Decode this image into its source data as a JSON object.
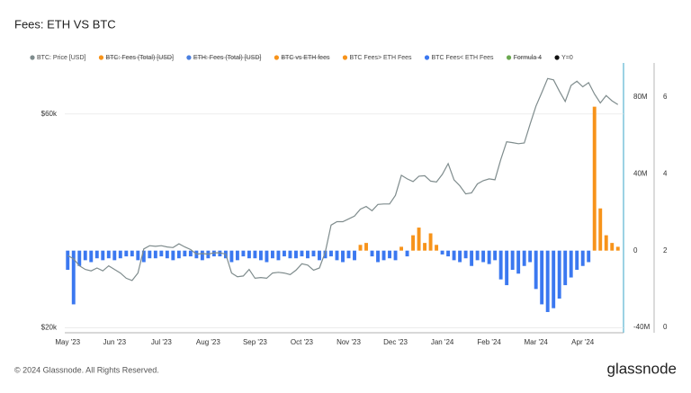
{
  "chart_data": {
    "type": "bar-line",
    "title": "Fees: ETH VS BTC",
    "categories": [
      "May '23",
      null,
      null,
      null,
      null,
      null,
      null,
      null,
      "Jun '23",
      null,
      null,
      null,
      null,
      null,
      null,
      null,
      "Jul '23",
      null,
      null,
      null,
      null,
      null,
      null,
      null,
      "Aug '23",
      null,
      null,
      null,
      null,
      null,
      null,
      null,
      "Sep '23",
      null,
      null,
      null,
      null,
      null,
      null,
      null,
      "Oct '23",
      null,
      null,
      null,
      null,
      null,
      null,
      null,
      "Nov '23",
      null,
      null,
      null,
      null,
      null,
      null,
      null,
      "Dec '23",
      null,
      null,
      null,
      null,
      null,
      null,
      null,
      "Jan '24",
      null,
      null,
      null,
      null,
      null,
      null,
      null,
      "Feb '24",
      null,
      null,
      null,
      null,
      null,
      null,
      null,
      "Mar '24",
      null,
      null,
      null,
      null,
      null,
      null,
      null,
      "Apr '24",
      null,
      null,
      null,
      null,
      null,
      null
    ],
    "series": [
      {
        "name": "BTC: Price [USD]",
        "color": "#7f8c8d",
        "kind": "line",
        "axis": "y",
        "hidden": false,
        "values": [
          29000,
          28500,
          27500,
          27000,
          26800,
          27200,
          26800,
          27500,
          27000,
          26500,
          25800,
          25500,
          26500,
          30000,
          30500,
          30400,
          30500,
          30300,
          30200,
          30800,
          30300,
          29900,
          29200,
          29300,
          29200,
          29400,
          29400,
          29200,
          26500,
          26000,
          26100,
          27000,
          25800,
          25900,
          25800,
          26500,
          26600,
          26500,
          26300,
          26900,
          27800,
          27600,
          26900,
          27200,
          29500,
          33900,
          34500,
          34500,
          35000,
          35500,
          36800,
          37300,
          36500,
          37700,
          37800,
          37800,
          39500,
          43800,
          43000,
          42400,
          43600,
          43700,
          42500,
          42300,
          44000,
          46500,
          42800,
          41500,
          39800,
          40000,
          41900,
          42600,
          43000,
          42800,
          47500,
          52000,
          51800,
          51500,
          51700,
          57000,
          62500,
          67000,
          72000,
          71500,
          67500,
          64000,
          69500,
          71000,
          69000,
          70500,
          66500,
          63500,
          66000,
          64200,
          63000
        ]
      },
      {
        "name": "BTC: Fees (Total) [USD]",
        "color": "#f7931a",
        "hidden": true
      },
      {
        "name": "ETH: Fees (Total) [USD]",
        "color": "#4a7fe0",
        "hidden": true
      },
      {
        "name": "BTC vs ETH fees",
        "color": "#f7931a",
        "hidden": true
      },
      {
        "name": "BTC Fees> ETH Fees",
        "color": "#f7931a",
        "kind": "bar",
        "axis": "y2",
        "hidden": false,
        "values": [
          null,
          null,
          null,
          null,
          null,
          null,
          null,
          null,
          null,
          null,
          null,
          null,
          null,
          null,
          null,
          null,
          null,
          null,
          null,
          null,
          null,
          null,
          null,
          null,
          null,
          null,
          null,
          null,
          null,
          null,
          null,
          null,
          null,
          null,
          null,
          null,
          null,
          null,
          null,
          null,
          null,
          null,
          null,
          null,
          null,
          null,
          null,
          null,
          null,
          null,
          3000000,
          4000000,
          null,
          null,
          null,
          null,
          null,
          2000000,
          null,
          8000000,
          12000000,
          4000000,
          9000000,
          3000000,
          null,
          null,
          null,
          null,
          null,
          null,
          null,
          null,
          null,
          null,
          null,
          null,
          null,
          null,
          null,
          null,
          null,
          null,
          null,
          null,
          null,
          null,
          null,
          null,
          null,
          null,
          75000000,
          22000000,
          8000000,
          4000000,
          2000000
        ]
      },
      {
        "name": "BTC Fees< ETH Fees",
        "color": "#3b78f0",
        "kind": "bar",
        "axis": "y2",
        "hidden": false,
        "values": [
          -10000000,
          -28000000,
          -8000000,
          -5000000,
          -6000000,
          -4000000,
          -5000000,
          -4000000,
          -5000000,
          -4000000,
          -3000000,
          -3000000,
          -5000000,
          -6000000,
          -4000000,
          -4000000,
          -3000000,
          -4000000,
          -5000000,
          -4000000,
          -3000000,
          -3000000,
          -4000000,
          -5000000,
          -4000000,
          -3000000,
          -3000000,
          -4000000,
          -6000000,
          -5000000,
          -3000000,
          -4000000,
          -4000000,
          -5000000,
          -6000000,
          -4000000,
          -5000000,
          -3000000,
          -4000000,
          -4000000,
          -3000000,
          -4000000,
          -3000000,
          -5000000,
          -4000000,
          -3000000,
          -5000000,
          -6000000,
          -4000000,
          -5000000,
          null,
          null,
          -3000000,
          -6000000,
          -5000000,
          -4000000,
          -5000000,
          null,
          -3000000,
          null,
          null,
          null,
          null,
          null,
          -2000000,
          -3000000,
          -5000000,
          -6000000,
          -4000000,
          -8000000,
          -5000000,
          -6000000,
          -7000000,
          -5000000,
          -15000000,
          -18000000,
          -10000000,
          -12000000,
          -8000000,
          -6000000,
          -20000000,
          -28000000,
          -32000000,
          -30000000,
          -25000000,
          -18000000,
          -14000000,
          -10000000,
          -8000000,
          -6000000,
          null,
          null,
          null,
          null,
          null
        ]
      },
      {
        "name": "Formula 4",
        "color": "#6aa84f",
        "hidden": true
      },
      {
        "name": "Y=0",
        "color": "#111111",
        "hidden": false
      }
    ],
    "ylog": true,
    "ylim": [
      19500,
      78000
    ],
    "yticks": [
      {
        "value": 20000,
        "label": "$20k"
      },
      {
        "value": 60000,
        "label": "$60k"
      }
    ],
    "y2lim": [
      -42800000,
      97800000
    ],
    "y2ticks": [
      {
        "value": -40000000,
        "label": "-40M"
      },
      0,
      {
        "value": 40000000,
        "label": "40M"
      },
      {
        "value": 80000000,
        "label": "80M"
      }
    ],
    "y3lim": [
      -0.14,
      6.89
    ],
    "y3ticks": [
      0,
      2,
      4,
      6
    ],
    "grid": true
  },
  "footer": {
    "copyright": "© 2024 Glassnode. All Rights Reserved.",
    "logo": "glassnode"
  }
}
